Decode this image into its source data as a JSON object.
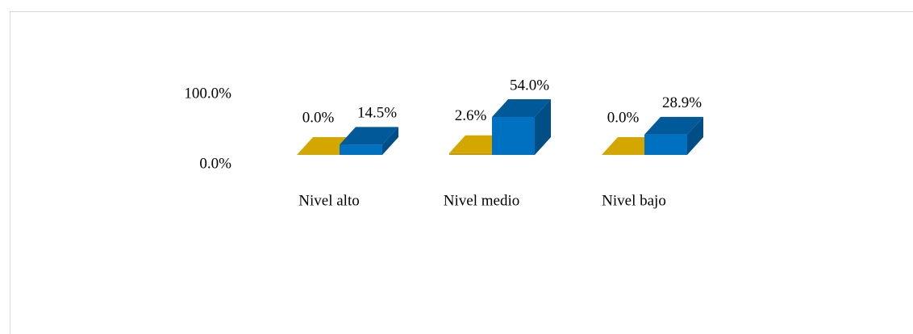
{
  "chart_data": {
    "type": "bar3d",
    "categories": [
      "Nivel alto",
      "Nivel medio",
      "Nivel bajo"
    ],
    "series": [
      {
        "color": "#c49a00",
        "values": [
          0.0,
          2.6,
          0.0
        ],
        "value_labels": [
          "0.0%",
          "2.6%",
          "0.0%"
        ]
      },
      {
        "color": "#0070c0",
        "values": [
          14.5,
          54.0,
          28.9
        ],
        "value_labels": [
          "14.5%",
          "54.0%",
          "28.9%"
        ]
      }
    ],
    "ylim": [
      0,
      100
    ],
    "yticks": [
      {
        "value": 0,
        "label": "0.0%"
      },
      {
        "value": 100,
        "label": "100.0%"
      }
    ]
  }
}
